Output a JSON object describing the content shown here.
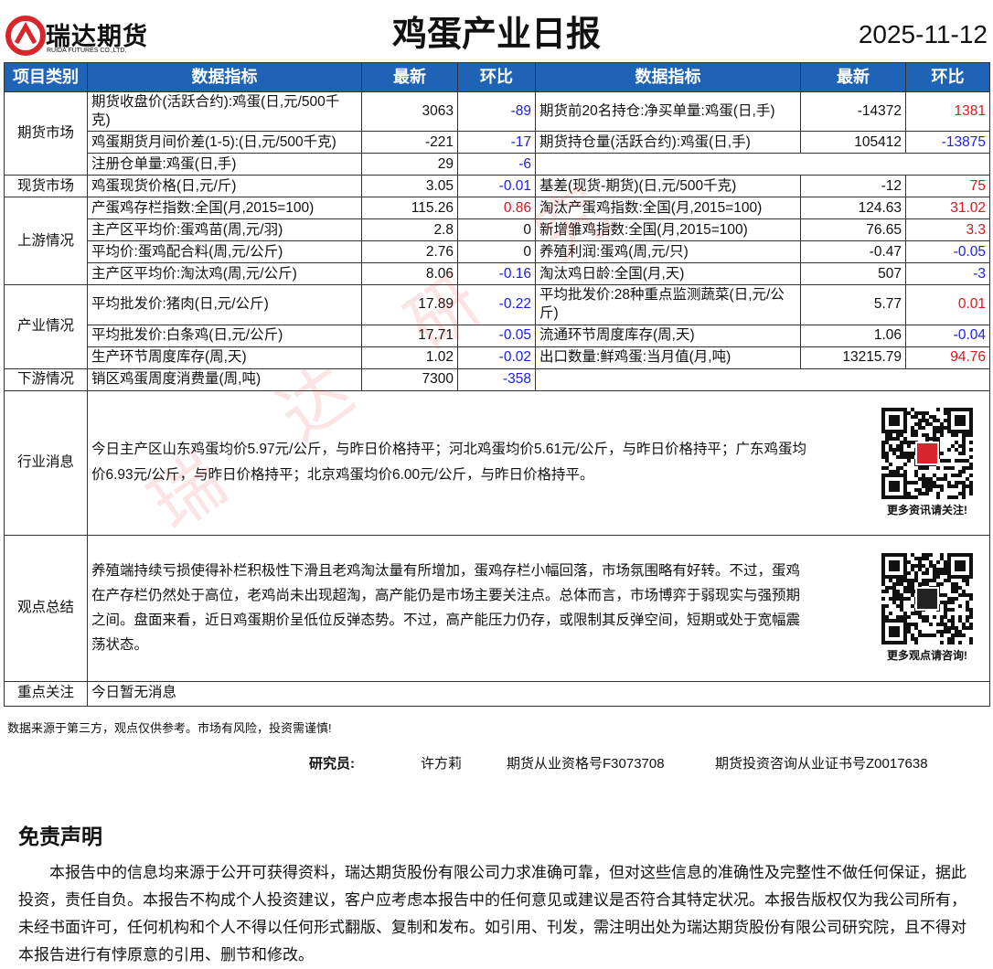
{
  "header": {
    "logo_text": "瑞达期货",
    "logo_sub": "RUIDA FUTURES CO.,LTD.",
    "title": "鸡蛋产业日报",
    "date": "2025-11-12"
  },
  "table": {
    "columns": [
      "项目类别",
      "数据指标",
      "最新",
      "环比",
      "数据指标",
      "最新",
      "环比"
    ],
    "sections": [
      {
        "category": "期货市场",
        "rows": [
          {
            "left": [
              "期货收盘价(活跃合约):鸡蛋(日,元/500千克)",
              "3063",
              "-89"
            ],
            "right": [
              "期货前20名持仓:净买单量:鸡蛋(日,手)",
              "-14372",
              "1381"
            ]
          },
          {
            "left": [
              "鸡蛋期货月间价差(1-5):(日,元/500千克)",
              "-221",
              "-17"
            ],
            "right": [
              "期货持仓量(活跃合约):鸡蛋(日,手)",
              "105412",
              "-13875"
            ]
          },
          {
            "left": [
              "注册仓单量:鸡蛋(日,手)",
              "29",
              "-6"
            ]
          }
        ]
      },
      {
        "category": "现货市场",
        "rows": [
          {
            "left": [
              "鸡蛋现货价格(日,元/斤)",
              "3.05",
              "-0.01"
            ],
            "right": [
              "基差(现货-期货)(日,元/500千克)",
              "-12",
              "75"
            ]
          }
        ]
      },
      {
        "category": "上游情况",
        "rows": [
          {
            "left": [
              "产蛋鸡存栏指数:全国(月,2015=100)",
              "115.26",
              "0.86"
            ],
            "right": [
              "淘汰产蛋鸡指数:全国(月,2015=100)",
              "124.63",
              "31.02"
            ]
          },
          {
            "left": [
              "主产区平均价:蛋鸡苗(周,元/羽)",
              "2.8",
              "0"
            ],
            "right": [
              "新增雏鸡指数:全国(月,2015=100)",
              "76.65",
              "3.3"
            ]
          },
          {
            "left": [
              "平均价:蛋鸡配合料(周,元/公斤)",
              "2.76",
              "0"
            ],
            "right": [
              "养殖利润:蛋鸡(周,元/只)",
              "-0.47",
              "-0.05"
            ]
          },
          {
            "left": [
              "主产区平均价:淘汰鸡(周,元/公斤)",
              "8.06",
              "-0.16"
            ],
            "right": [
              "淘汰鸡日龄:全国(月,天)",
              "507",
              "-3"
            ]
          }
        ]
      },
      {
        "category": "产业情况",
        "rows": [
          {
            "left": [
              "平均批发价:猪肉(日,元/公斤)",
              "17.89",
              "-0.22"
            ],
            "right": [
              "平均批发价:28种重点监测蔬菜(日,元/公斤)",
              "5.77",
              "0.01"
            ]
          },
          {
            "left": [
              "平均批发价:白条鸡(日,元/公斤)",
              "17.71",
              "-0.05"
            ],
            "right": [
              "流通环节周度库存(周,天)",
              "1.06",
              "-0.04"
            ]
          },
          {
            "left": [
              "生产环节周度库存(周,天)",
              "1.02",
              "-0.02"
            ],
            "right": [
              "出口数量:鲜鸡蛋:当月值(月,吨)",
              "13215.79",
              "94.76"
            ]
          }
        ]
      },
      {
        "category": "下游情况",
        "rows": [
          {
            "left": [
              "销区鸡蛋周度消费量(周,吨)",
              "7300",
              "-358"
            ]
          }
        ]
      }
    ]
  },
  "news": {
    "label": "行业消息",
    "text": "今日主产区山东鸡蛋均价5.97元/公斤，与昨日价格持平；河北鸡蛋均价5.61元/公斤，与昨日价格持平；广东鸡蛋均价6.93元/公斤，与昨日价格持平；北京鸡蛋均价6.00元/公斤，与昨日价格持平。",
    "qr_caption": "更多资讯请关注!"
  },
  "summary": {
    "label": "观点总结",
    "text": "养殖端持续亏损使得补栏积极性下滑且老鸡淘汰量有所增加，蛋鸡存栏小幅回落，市场氛围略有好转。不过，蛋鸡在产存栏仍然处于高位，老鸡尚未出现超淘，高产能仍是市场主要关注点。总体而言，市场博弈于弱现实与强预期之间。盘面来看，近日鸡蛋期价呈低位反弹态势。不过，高产能压力仍存，或限制其反弹空间，短期或处于宽幅震荡状态。",
    "qr_caption": "更多观点请咨询!"
  },
  "focus": {
    "label": "重点关注",
    "text": "今日暂无消息"
  },
  "watermark": "瑞达研究",
  "footnote": "数据来源于第三方，观点仅供参考。市场有风险，投资需谨慎!",
  "researcher": {
    "label": "研究员:",
    "name": "许方莉",
    "license1": "期货从业资格号F3073708",
    "license2": "期货投资咨询从业证书号Z0017638"
  },
  "disclaimer": {
    "title": "免责声明",
    "text": "本报告中的信息均来源于公开可获得资料，瑞达期货股份有限公司力求准确可靠，但对这些信息的准确性及完整性不做任何保证，据此投资，责任自负。本报告不构成个人投资建议，客户应考虑本报告中的任何意见或建议是否符合其特定状况。本报告版权仅为我公司所有，未经书面许可，任何机构和个人不得以任何形式翻版、复制和发布。如引用、刊发，需注明出处为瑞达期货股份有限公司研究院，且不得对本报告进行有悖原意的引用、删节和修改。"
  }
}
